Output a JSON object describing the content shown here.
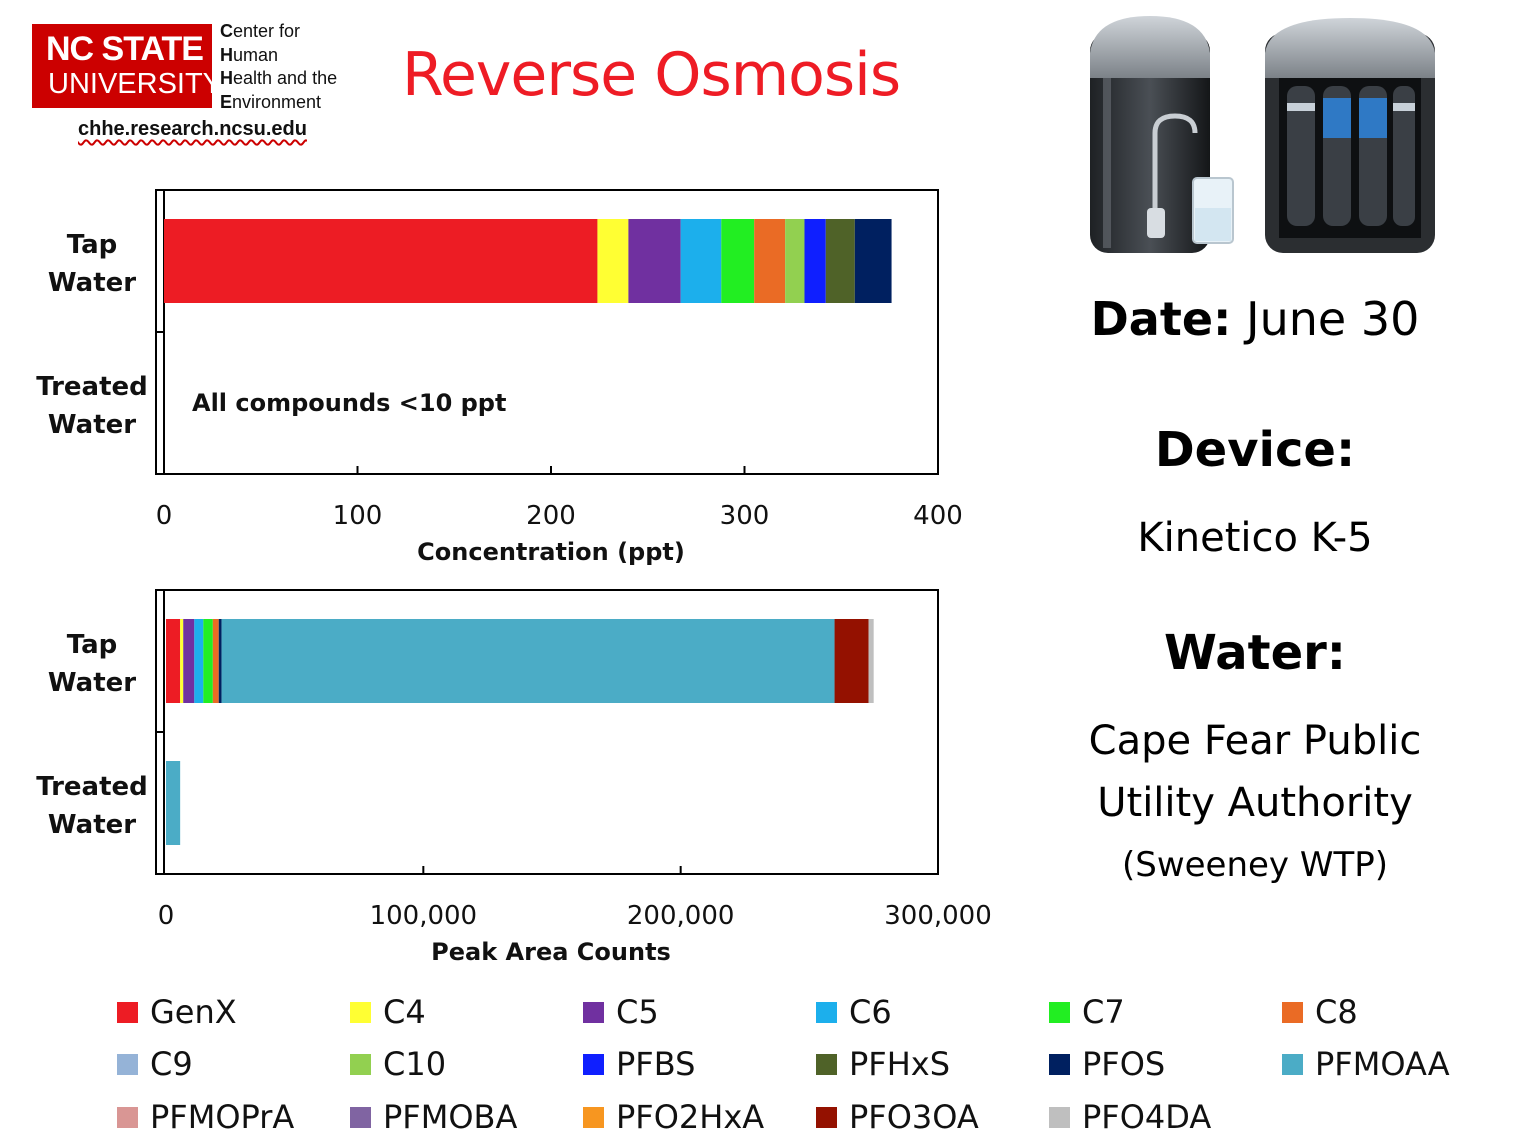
{
  "header": {
    "logo_line1": "NC STATE",
    "logo_line2": "UNIVERSITY",
    "center_lines": [
      {
        "initial": "C",
        "rest": "enter for"
      },
      {
        "initial": "H",
        "rest": "uman"
      },
      {
        "initial": "H",
        "rest": "ealth and the"
      },
      {
        "initial": "E",
        "rest": "nvironment"
      }
    ],
    "url": "chhe.research.ncsu.edu",
    "title": "Reverse Osmosis"
  },
  "info": {
    "date_label": "Date:",
    "date_value": "June 30",
    "device_label": "Device:",
    "device_value": "Kinetico K-5",
    "water_label": "Water:",
    "water_line1": "Cape Fear Public",
    "water_line2": "Utility Authority",
    "water_line3": "(Sweeney WTP)"
  },
  "legend": [
    {
      "name": "GenX",
      "color": "#ed1c24"
    },
    {
      "name": "C4",
      "color": "#ffff33"
    },
    {
      "name": "C5",
      "color": "#7030a0"
    },
    {
      "name": "C6",
      "color": "#1cafec"
    },
    {
      "name": "C7",
      "color": "#22ee22"
    },
    {
      "name": "C8",
      "color": "#ea6b25"
    },
    {
      "name": "C9",
      "color": "#95b3d7"
    },
    {
      "name": "C10",
      "color": "#92d050"
    },
    {
      "name": "PFBS",
      "color": "#0f1fff"
    },
    {
      "name": "PFHxS",
      "color": "#4f6228"
    },
    {
      "name": "PFOS",
      "color": "#002060"
    },
    {
      "name": "PFMOAA",
      "color": "#4bacc6"
    },
    {
      "name": "PFMOPrA",
      "color": "#d99694"
    },
    {
      "name": "PFMOBA",
      "color": "#8064a2"
    },
    {
      "name": "PFO2HxA",
      "color": "#f79620"
    },
    {
      "name": "PFO3OA",
      "color": "#941100"
    },
    {
      "name": "PFO4DA",
      "color": "#bfbfbf"
    }
  ],
  "chart_data": [
    {
      "type": "bar",
      "orientation": "horizontal",
      "stacked": true,
      "categories": [
        "Tap Water",
        "Treated Water"
      ],
      "category_label_lines": [
        [
          "Tap",
          "Water"
        ],
        [
          "Treated",
          "Water"
        ]
      ],
      "xlabel": "Concentration (ppt)",
      "xlim": [
        0,
        400
      ],
      "xticks": [
        0,
        100,
        200,
        300,
        400
      ],
      "xtick_labels": [
        "0",
        "100",
        "200",
        "300",
        "400"
      ],
      "annotation": "All compounds <10 ppt",
      "series": [
        {
          "name": "GenX",
          "values": [
            224,
            0
          ]
        },
        {
          "name": "C4",
          "values": [
            16,
            0
          ]
        },
        {
          "name": "C5",
          "values": [
            27,
            0
          ]
        },
        {
          "name": "C6",
          "values": [
            21,
            0
          ]
        },
        {
          "name": "C7",
          "values": [
            17,
            0
          ]
        },
        {
          "name": "C8",
          "values": [
            16,
            0
          ]
        },
        {
          "name": "C10",
          "values": [
            10,
            0
          ]
        },
        {
          "name": "PFBS",
          "values": [
            11,
            0
          ]
        },
        {
          "name": "PFHxS",
          "values": [
            15,
            0
          ]
        },
        {
          "name": "PFOS",
          "values": [
            19,
            0
          ]
        }
      ]
    },
    {
      "type": "bar",
      "orientation": "horizontal",
      "stacked": true,
      "categories": [
        "Tap Water",
        "Treated Water"
      ],
      "category_label_lines": [
        [
          "Tap",
          "Water"
        ],
        [
          "Treated",
          "Water"
        ]
      ],
      "xlabel": "Peak Area Counts",
      "xlim": [
        0,
        300000
      ],
      "xticks": [
        0,
        100000,
        200000,
        300000
      ],
      "xtick_labels": [
        "0",
        "100,000",
        "200,000",
        "300,000"
      ],
      "series": [
        {
          "name": "GenX",
          "values": [
            5500,
            0
          ]
        },
        {
          "name": "C4",
          "values": [
            1200,
            0
          ]
        },
        {
          "name": "C5",
          "values": [
            4300,
            0
          ]
        },
        {
          "name": "C6",
          "values": [
            3500,
            0
          ]
        },
        {
          "name": "C7",
          "values": [
            3700,
            0
          ]
        },
        {
          "name": "C8",
          "values": [
            2300,
            0
          ]
        },
        {
          "name": "PFOS",
          "values": [
            1100,
            0
          ]
        },
        {
          "name": "PFMOAA",
          "values": [
            238200,
            5500
          ]
        },
        {
          "name": "PFO3OA",
          "values": [
            13200,
            0
          ]
        },
        {
          "name": "PFO4DA",
          "values": [
            2000,
            0
          ]
        }
      ]
    }
  ]
}
